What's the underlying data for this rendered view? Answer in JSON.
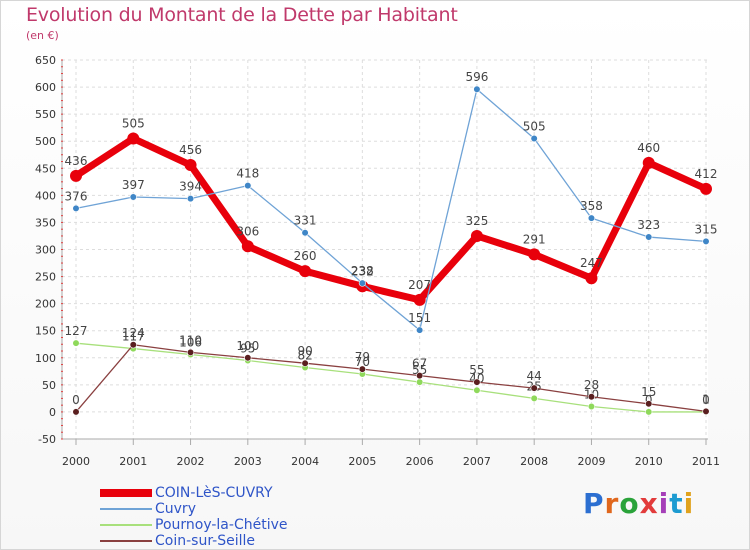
{
  "header": {
    "title": "Evolution du Montant de la Dette par Habitant",
    "subtitle": "(en €)"
  },
  "brand": {
    "text": "Proxiti",
    "letter_colors": [
      "#2c6fd1",
      "#e0671d",
      "#2aa33a",
      "#e23b3b",
      "#a53fb8",
      "#1d9bd1",
      "#e0a21d"
    ]
  },
  "chart_data": {
    "type": "line",
    "title": "Evolution du Montant de la Dette par Habitant",
    "subtitle": "(en €)",
    "xlabel": "",
    "ylabel": "",
    "x": [
      "2000",
      "2001",
      "2002",
      "2003",
      "2004",
      "2005",
      "2006",
      "2007",
      "2008",
      "2009",
      "2010",
      "2011"
    ],
    "ylim": [
      -50,
      650
    ],
    "yticks": [
      -50,
      0,
      50,
      100,
      150,
      200,
      250,
      300,
      350,
      400,
      450,
      500,
      550,
      600,
      650
    ],
    "grid": true,
    "legend": "bottom-left",
    "series": [
      {
        "name": "COIN-LèS-CUVRY",
        "color": "#e8000b",
        "marker_color": "#e8000b",
        "width": 7,
        "values": [
          436,
          505,
          456,
          306,
          260,
          232,
          207,
          325,
          291,
          247,
          460,
          412
        ],
        "labels": [
          "436",
          "505",
          "456",
          "306",
          "260",
          "232",
          "207",
          "325",
          "291",
          "247",
          "460",
          "412"
        ]
      },
      {
        "name": "Cuvry",
        "color": "#6fa3d6",
        "marker_color": "#3f86c7",
        "width": 1.3,
        "values": [
          376,
          397,
          394,
          418,
          331,
          238,
          151,
          596,
          505,
          358,
          323,
          315
        ],
        "labels": [
          "376",
          "397",
          "394",
          "418",
          "331",
          "238",
          "151",
          "596",
          "505",
          "358",
          "323",
          "315"
        ]
      },
      {
        "name": "Pournoy-la-Chétive",
        "color": "#a8e07c",
        "marker_color": "#8fd95b",
        "width": 1.3,
        "values": [
          127,
          117,
          106,
          95,
          82,
          70,
          55,
          40,
          25,
          10,
          0,
          0
        ],
        "labels": [
          "127",
          "117",
          "106",
          "95",
          "82",
          "70",
          "55",
          "40",
          "25",
          "10",
          "0",
          "0"
        ]
      },
      {
        "name": "Coin-sur-Seille",
        "color": "#8a4040",
        "marker_color": "#5a1f1f",
        "width": 1.3,
        "values": [
          0,
          124,
          110,
          100,
          90,
          79,
          67,
          55,
          44,
          28,
          15,
          1
        ],
        "labels": [
          "0",
          "124",
          "110",
          "100",
          "90",
          "79",
          "67",
          "55",
          "44",
          "28",
          "15",
          "1"
        ]
      }
    ]
  }
}
